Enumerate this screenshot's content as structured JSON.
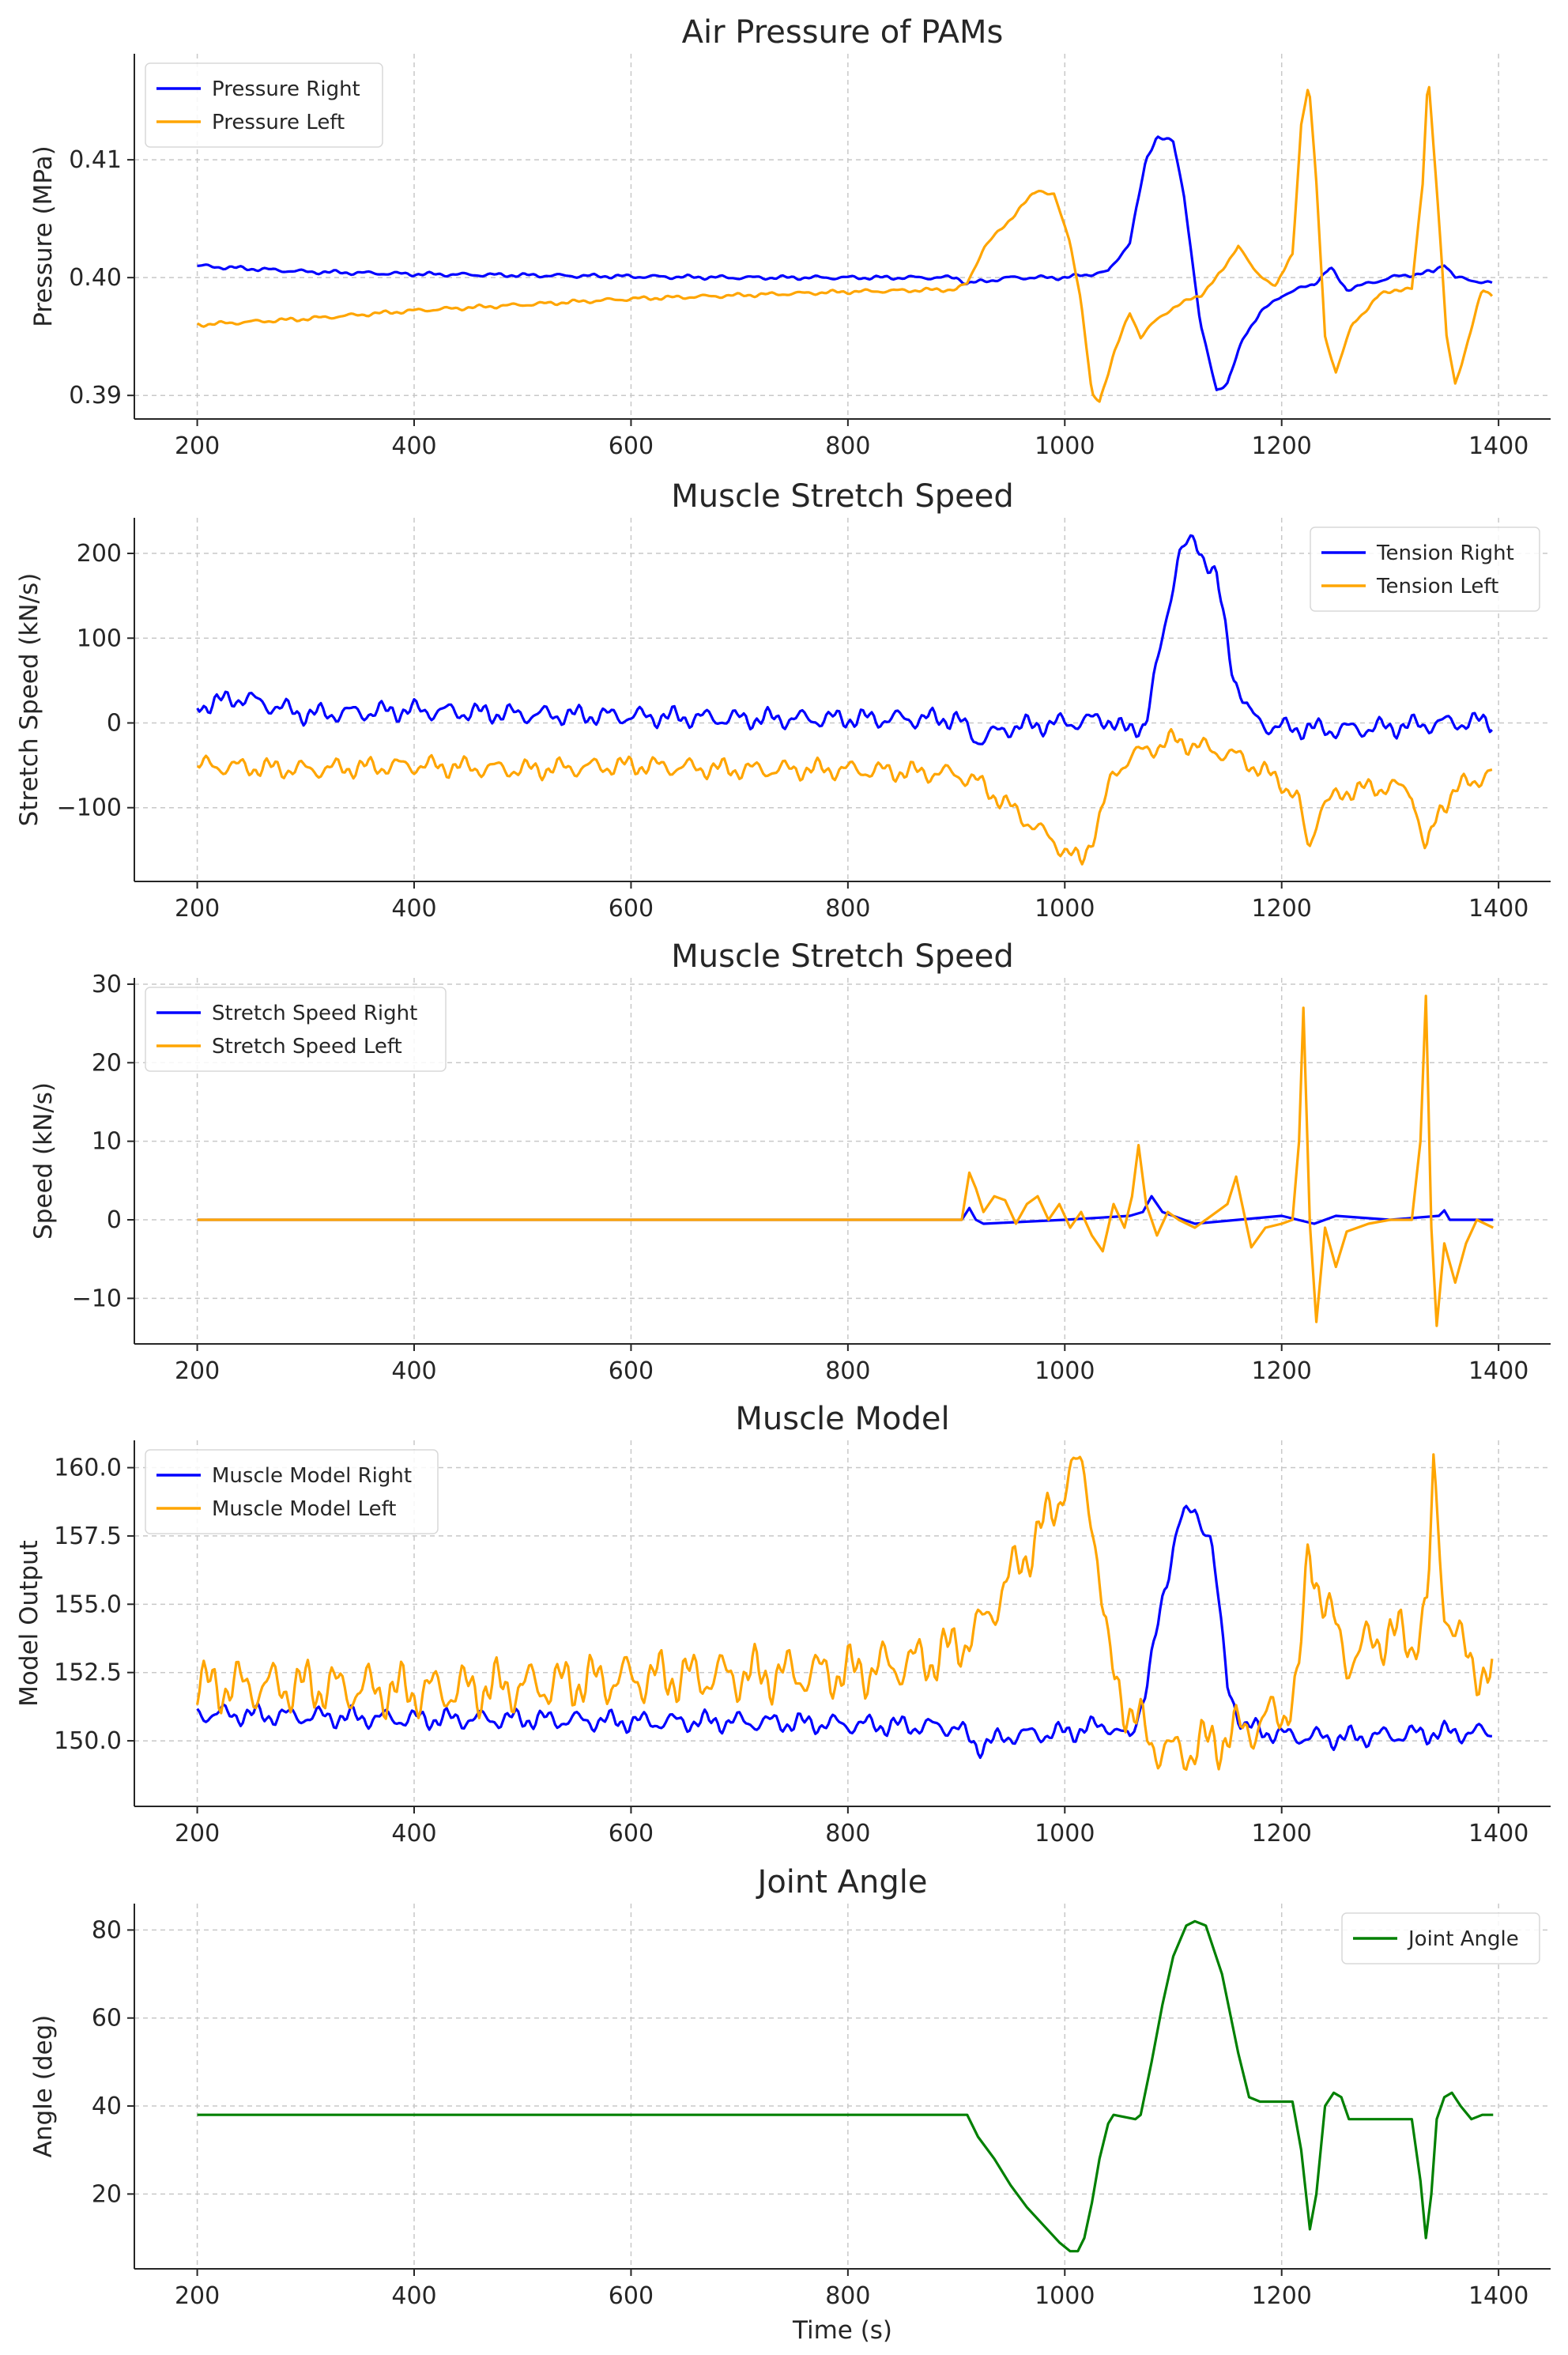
{
  "figure": {
    "xlabel": "Time (s)"
  },
  "colors": {
    "right": "#0000ff",
    "left": "#ffa500",
    "joint": "#008000",
    "grid": "#c8c8c8",
    "axis": "#262626"
  },
  "chart_data": [
    {
      "type": "line",
      "title": "Air Pressure of PAMs",
      "xlabel": "",
      "ylabel": "Pressure (MPa)",
      "xlim": [
        142,
        1448
      ],
      "ylim": [
        0.388,
        0.419
      ],
      "xticks": [
        200,
        400,
        600,
        800,
        1000,
        1200,
        1400
      ],
      "xtick_labels": [
        "200",
        "400",
        "600",
        "800",
        "1000",
        "1200",
        "1400"
      ],
      "yticks": [
        0.39,
        0.4,
        0.41
      ],
      "ytick_labels": [
        "0.39",
        "0.40",
        "0.41"
      ],
      "legend": "top-left",
      "grid": true,
      "series": [
        {
          "name": "Pressure Right",
          "color": "#0000ff",
          "noise": 0.0002,
          "x": [
            200,
            300,
            400,
            500,
            600,
            700,
            800,
            900,
            910,
            950,
            1000,
            1040,
            1060,
            1075,
            1085,
            1100,
            1110,
            1125,
            1140,
            1150,
            1165,
            1180,
            1200,
            1230,
            1245,
            1260,
            1300,
            1340,
            1350,
            1360,
            1395
          ],
          "y": [
            0.401,
            0.4005,
            0.4003,
            0.4002,
            0.4001,
            0.4,
            0.4,
            0.4,
            0.3995,
            0.4,
            0.4,
            0.4005,
            0.403,
            0.41,
            0.412,
            0.4115,
            0.407,
            0.396,
            0.3905,
            0.391,
            0.395,
            0.397,
            0.3985,
            0.3995,
            0.4008,
            0.399,
            0.4,
            0.4005,
            0.4012,
            0.4,
            0.3995
          ]
        },
        {
          "name": "Pressure Left",
          "color": "#ffa500",
          "noise": 0.0002,
          "x": [
            200,
            300,
            400,
            500,
            600,
            700,
            800,
            900,
            910,
            925,
            950,
            975,
            990,
            1005,
            1015,
            1025,
            1032,
            1045,
            1060,
            1070,
            1080,
            1100,
            1125,
            1145,
            1160,
            1175,
            1195,
            1210,
            1218,
            1225,
            1232,
            1240,
            1250,
            1265,
            1290,
            1305,
            1320,
            1330,
            1335,
            1345,
            1352,
            1360,
            1370,
            1385,
            1395
          ],
          "y": [
            0.396,
            0.3965,
            0.3972,
            0.3977,
            0.3982,
            0.3985,
            0.3988,
            0.399,
            0.3995,
            0.4025,
            0.405,
            0.4075,
            0.407,
            0.403,
            0.398,
            0.39,
            0.3895,
            0.3935,
            0.397,
            0.395,
            0.396,
            0.3975,
            0.3985,
            0.4005,
            0.4028,
            0.4005,
            0.3993,
            0.402,
            0.413,
            0.4165,
            0.408,
            0.395,
            0.392,
            0.396,
            0.3985,
            0.399,
            0.399,
            0.408,
            0.4175,
            0.405,
            0.395,
            0.391,
            0.394,
            0.399,
            0.3985
          ]
        }
      ]
    },
    {
      "type": "line",
      "title": "Muscle Stretch Speed",
      "xlabel": "",
      "ylabel": "Stretch Speed (kN/s)",
      "xlim": [
        142,
        1448
      ],
      "ylim": [
        -187,
        242
      ],
      "xticks": [
        200,
        400,
        600,
        800,
        1000,
        1200,
        1400
      ],
      "xtick_labels": [
        "200",
        "400",
        "600",
        "800",
        "1000",
        "1200",
        "1400"
      ],
      "yticks": [
        -100,
        0,
        100,
        200
      ],
      "ytick_labels": [
        "−100",
        "0",
        "100",
        "200"
      ],
      "legend": "top-right",
      "grid": true,
      "series": [
        {
          "name": "Tension Right",
          "color": "#0000ff",
          "noise": 14,
          "x": [
            200,
            240,
            300,
            400,
            500,
            600,
            700,
            800,
            900,
            920,
            950,
            1000,
            1040,
            1055,
            1075,
            1090,
            1105,
            1120,
            1140,
            1155,
            1170,
            1190,
            1250,
            1300,
            1350,
            1395
          ],
          "y": [
            20,
            30,
            10,
            15,
            10,
            8,
            5,
            5,
            5,
            -20,
            -5,
            0,
            5,
            -10,
            0,
            100,
            200,
            215,
            170,
            60,
            10,
            -5,
            -8,
            -5,
            0,
            2
          ]
        },
        {
          "name": "Tension Left",
          "color": "#ffa500",
          "noise": 14,
          "x": [
            200,
            300,
            400,
            500,
            600,
            700,
            800,
            900,
            920,
            950,
            980,
            1000,
            1015,
            1030,
            1045,
            1060,
            1080,
            1100,
            1130,
            1160,
            1200,
            1215,
            1225,
            1235,
            1260,
            1300,
            1320,
            1333,
            1345,
            1370,
            1395
          ],
          "y": [
            -50,
            -55,
            -50,
            -55,
            -50,
            -55,
            -55,
            -60,
            -70,
            -100,
            -130,
            -150,
            -165,
            -120,
            -60,
            -40,
            -30,
            -20,
            -30,
            -40,
            -70,
            -90,
            -150,
            -100,
            -80,
            -75,
            -80,
            -155,
            -100,
            -70,
            -60
          ]
        }
      ]
    },
    {
      "type": "line",
      "title": "Muscle Stretch Speed",
      "xlabel": "",
      "ylabel": "Speed (kN/s)",
      "xlim": [
        142,
        1448
      ],
      "ylim": [
        -15.8,
        30.8
      ],
      "xticks": [
        200,
        400,
        600,
        800,
        1000,
        1200,
        1400
      ],
      "xtick_labels": [
        "200",
        "400",
        "600",
        "800",
        "1000",
        "1200",
        "1400"
      ],
      "yticks": [
        -10,
        0,
        10,
        20,
        30
      ],
      "ytick_labels": [
        "−10",
        "0",
        "10",
        "20",
        "30"
      ],
      "legend": "top-left",
      "grid": true,
      "series": [
        {
          "name": "Stretch Speed Right",
          "color": "#0000ff",
          "noise": 0,
          "x": [
            200,
            300,
            400,
            500,
            600,
            700,
            800,
            905,
            912,
            918,
            925,
            1000,
            1060,
            1072,
            1080,
            1090,
            1120,
            1200,
            1230,
            1250,
            1300,
            1345,
            1350,
            1355,
            1395
          ],
          "y": [
            0,
            0,
            0,
            0,
            0,
            0,
            0,
            0,
            1.5,
            0,
            -0.5,
            0,
            0.5,
            1,
            3,
            1,
            -0.5,
            0.5,
            -0.5,
            0.5,
            0,
            0.5,
            1.2,
            0,
            0
          ]
        },
        {
          "name": "Stretch Speed Left",
          "color": "#ffa500",
          "noise": 0,
          "x": [
            200,
            300,
            400,
            500,
            600,
            700,
            800,
            905,
            912,
            918,
            925,
            935,
            945,
            955,
            965,
            975,
            985,
            995,
            1005,
            1015,
            1025,
            1035,
            1045,
            1055,
            1062,
            1068,
            1075,
            1085,
            1095,
            1105,
            1120,
            1140,
            1150,
            1158,
            1165,
            1172,
            1185,
            1200,
            1210,
            1216,
            1220,
            1226,
            1232,
            1240,
            1250,
            1260,
            1280,
            1300,
            1320,
            1328,
            1333,
            1338,
            1343,
            1350,
            1360,
            1370,
            1380,
            1395
          ],
          "y": [
            0,
            0,
            0,
            0,
            0,
            0,
            0,
            0,
            6,
            4,
            1,
            3,
            2.5,
            -0.5,
            2,
            3,
            0,
            2,
            -1,
            1,
            -2,
            -4,
            2,
            -1,
            3,
            9.5,
            2,
            -2,
            1,
            0,
            -1,
            1,
            2,
            5.5,
            1,
            -3.5,
            -1,
            -0.5,
            0,
            10,
            27,
            -0.5,
            -13,
            -1,
            -6,
            -1.5,
            -0.5,
            0,
            0,
            10,
            28.5,
            -1,
            -13.5,
            -3,
            -8,
            -3,
            0,
            -1
          ]
        }
      ]
    },
    {
      "type": "line",
      "title": "Muscle Model",
      "xlabel": "",
      "ylabel": "Model Output",
      "xlim": [
        142,
        1448
      ],
      "ylim": [
        147.6,
        161.0
      ],
      "xticks": [
        200,
        400,
        600,
        800,
        1000,
        1200,
        1400
      ],
      "xtick_labels": [
        "200",
        "400",
        "600",
        "800",
        "1000",
        "1200",
        "1400"
      ],
      "yticks": [
        150.0,
        152.5,
        155.0,
        157.5,
        160.0
      ],
      "ytick_labels": [
        "150.0",
        "152.5",
        "155.0",
        "157.5",
        "160.0"
      ],
      "legend": "top-left",
      "grid": true,
      "series": [
        {
          "name": "Muscle Model Right",
          "color": "#0000ff",
          "noise": 0.45,
          "x": [
            200,
            300,
            400,
            500,
            600,
            700,
            800,
            900,
            920,
            950,
            1000,
            1040,
            1060,
            1075,
            1090,
            1105,
            1120,
            1135,
            1150,
            1165,
            1180,
            1200,
            1250,
            1300,
            1350,
            1395
          ],
          "y": [
            151,
            150.9,
            150.8,
            150.8,
            150.7,
            150.7,
            150.6,
            150.5,
            149.8,
            150.2,
            150.3,
            150.6,
            150,
            152,
            155,
            158.2,
            158.3,
            157.5,
            152,
            150.5,
            150.4,
            150.2,
            150.1,
            150.2,
            150.3,
            150.3
          ]
        },
        {
          "name": "Muscle Model Left",
          "color": "#ffa500",
          "noise": 1.15,
          "x": [
            200,
            300,
            400,
            500,
            600,
            700,
            800,
            880,
            920,
            950,
            975,
            990,
            1000,
            1015,
            1025,
            1040,
            1050,
            1060,
            1080,
            1100,
            1140,
            1170,
            1200,
            1215,
            1225,
            1240,
            1260,
            1300,
            1320,
            1335,
            1340,
            1350,
            1370,
            1395
          ],
          "y": [
            152,
            152,
            151.8,
            152,
            152.3,
            152.4,
            152.5,
            153,
            154,
            156,
            157.5,
            158.5,
            159.5,
            160,
            158.5,
            153,
            152,
            151,
            150,
            149.5,
            150,
            150.5,
            151,
            152,
            157,
            155,
            153,
            154,
            153.5,
            155,
            159.8,
            155,
            153,
            152.3
          ]
        }
      ]
    },
    {
      "type": "line",
      "title": "Joint Angle",
      "xlabel": "Time (s)",
      "ylabel": "Angle (deg)",
      "xlim": [
        142,
        1448
      ],
      "ylim": [
        3,
        86
      ],
      "xticks": [
        200,
        400,
        600,
        800,
        1000,
        1200,
        1400
      ],
      "xtick_labels": [
        "200",
        "400",
        "600",
        "800",
        "1000",
        "1200",
        "1400"
      ],
      "yticks": [
        20,
        40,
        60,
        80
      ],
      "ytick_labels": [
        "20",
        "40",
        "60",
        "80"
      ],
      "legend": "top-right",
      "grid": true,
      "series": [
        {
          "name": "Joint Angle",
          "color": "#008000",
          "noise": 0,
          "x": [
            200,
            910,
            920,
            935,
            950,
            965,
            980,
            995,
            1005,
            1012,
            1018,
            1025,
            1032,
            1040,
            1045,
            1065,
            1070,
            1080,
            1090,
            1100,
            1112,
            1120,
            1130,
            1145,
            1160,
            1170,
            1180,
            1200,
            1210,
            1218,
            1226,
            1232,
            1240,
            1248,
            1255,
            1262,
            1300,
            1320,
            1328,
            1333,
            1338,
            1343,
            1350,
            1357,
            1365,
            1375,
            1385,
            1395
          ],
          "y": [
            38,
            38,
            33,
            28,
            22,
            17,
            13,
            9,
            7,
            7,
            10,
            18,
            28,
            36,
            38,
            37,
            38,
            50,
            63,
            74,
            81,
            82,
            81,
            70,
            52,
            42,
            41,
            41,
            41,
            30,
            12,
            20,
            40,
            43,
            42,
            37,
            37,
            37,
            23,
            10,
            20,
            37,
            42,
            43,
            40,
            37,
            38,
            38
          ]
        }
      ]
    }
  ]
}
